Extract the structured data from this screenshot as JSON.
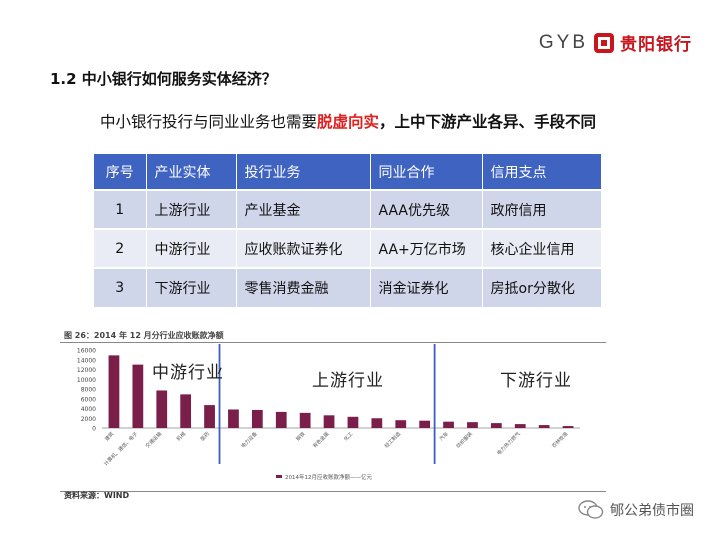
{
  "header": {
    "logo_text": "GYB",
    "logo_cn": "贵阳银行",
    "brand_color": "#c8161d"
  },
  "heading": "1.2  中小银行如何服务实体经济？",
  "subhead": {
    "part1": "中小银行投行与同业业务也需要",
    "highlight": "脱虚向实",
    "part2": "，上中下游产业各异、手段不同"
  },
  "table": {
    "headers": [
      "序号",
      "产业实体",
      "投行业务",
      "同业合作",
      "信用支点"
    ],
    "rows": [
      [
        "1",
        "上游行业",
        "产业基金",
        "AAA优先级",
        "政府信用"
      ],
      [
        "2",
        "中游行业",
        "应收账款证券化",
        "AA+万亿市场",
        "核心企业信用"
      ],
      [
        "3",
        "下游行业",
        "零售消费金融",
        "消金证券化",
        "房抵or分散化"
      ]
    ],
    "header_color": "#3f63c1"
  },
  "chart_data": {
    "type": "bar",
    "title": "图 26：2014 年 12 月分行业应收账款净额",
    "source": "资料来源：WIND",
    "ylim": [
      0,
      16000
    ],
    "yticks": [
      "16000",
      "14000",
      "12000",
      "10000",
      "8000",
      "6000",
      "4000",
      "2000",
      "0"
    ],
    "categories": [
      "建筑",
      "计算机、通信、电子",
      "交通运输",
      "机械",
      "医药",
      "",
      "电力设备",
      "",
      "钢铁",
      "有色金属",
      "化工",
      "",
      "轻工制造",
      "",
      "汽车",
      "纺织服装",
      "",
      "电力热力燃气",
      "",
      "农林牧渔"
    ],
    "values": [
      14900,
      13000,
      7700,
      6900,
      4700,
      3800,
      3700,
      3300,
      3100,
      2600,
      2300,
      2000,
      1600,
      1500,
      1300,
      1200,
      1000,
      800,
      600,
      400
    ],
    "legend": "2014年12月应收账款净额——亿元",
    "bar_color": "#7a1f4a",
    "segments": [
      "中游行业",
      "上游行业",
      "下游行业"
    ],
    "divider_color": "#3b5fc0"
  },
  "watermark": {
    "text": "郇公弟债市圈"
  }
}
